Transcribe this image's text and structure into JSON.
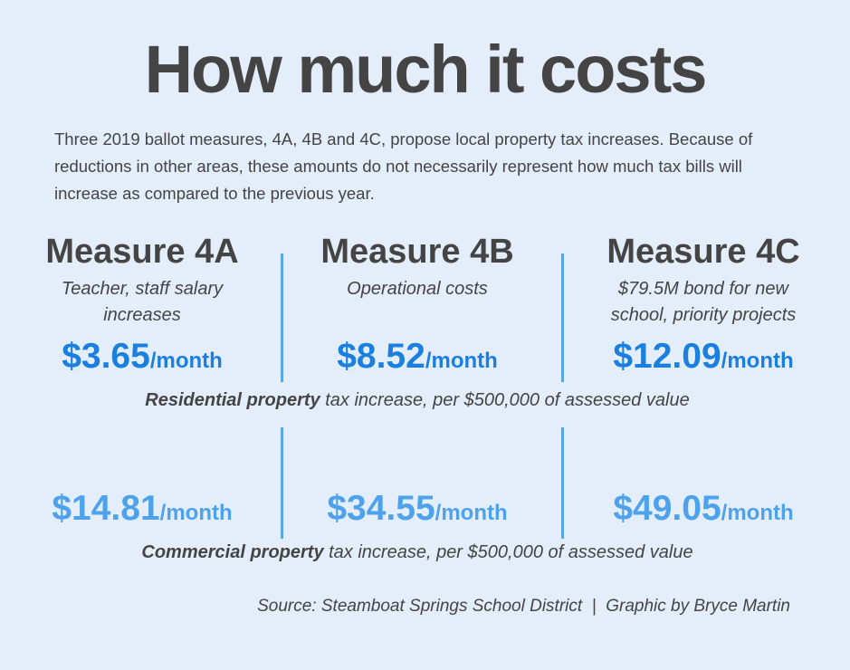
{
  "title": "How much it costs",
  "intro": "Three 2019 ballot measures, 4A, 4B and 4C, propose local property tax increases. Because of reductions in other areas, these amounts do not necessarily represent how much tax bills will increase as compared to the previous year.",
  "unit": "/month",
  "measures": [
    {
      "name": "Measure 4A",
      "description": "Teacher, staff salary increases",
      "residential": "$3.65",
      "commercial": "$14.81"
    },
    {
      "name": "Measure 4B",
      "description": "Operational costs",
      "residential": "$8.52",
      "commercial": "$34.55"
    },
    {
      "name": "Measure 4C",
      "description": "$79.5M bond for new school, priority projects",
      "residential": "$12.09",
      "commercial": "$49.05"
    }
  ],
  "residential_caption": {
    "bold": "Residential property",
    "rest": " tax increase, per $500,000 of assessed value"
  },
  "commercial_caption": {
    "bold": "Commercial property",
    "rest": " tax increase, per $500,000 of assessed value"
  },
  "source": "Source: Steamboat Springs School District  |  Graphic by Bryce Martin"
}
